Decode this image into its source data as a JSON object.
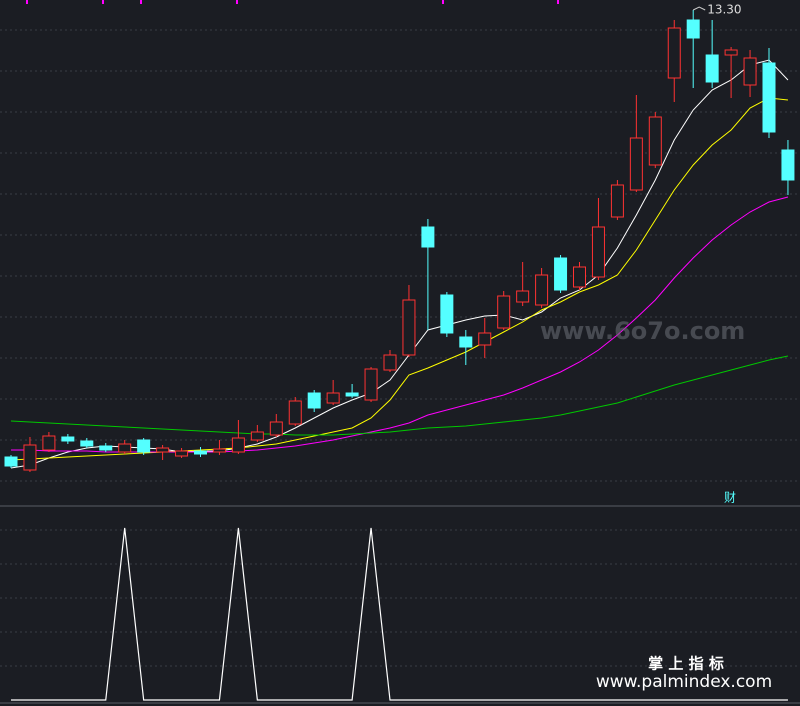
{
  "chart_data": [
    {
      "type": "candlestick",
      "ylim": [
        3.4,
        13.5
      ],
      "up_color": "#ff3232",
      "down_color": "#54ffff",
      "open": [
        4.36,
        4.1,
        4.5,
        4.76,
        4.68,
        4.58,
        4.46,
        4.7,
        4.46,
        4.38,
        4.48,
        4.46,
        4.46,
        4.7,
        4.8,
        5.02,
        5.64,
        5.44,
        5.64,
        5.5,
        6.1,
        6.4,
        8.96,
        7.6,
        6.76,
        6.6,
        6.94,
        7.46,
        7.4,
        8.34,
        7.76,
        7.96,
        9.16,
        9.7,
        10.2,
        11.94,
        13.1,
        12.4,
        12.4,
        11.8,
        12.24,
        10.5
      ],
      "high": [
        4.4,
        4.76,
        4.86,
        4.82,
        4.74,
        4.64,
        4.7,
        4.74,
        4.6,
        4.54,
        4.56,
        4.7,
        5.1,
        5.0,
        5.22,
        5.56,
        5.7,
        5.9,
        5.82,
        6.16,
        6.5,
        7.8,
        9.12,
        7.66,
        6.9,
        7.14,
        7.68,
        8.26,
        8.14,
        8.4,
        8.26,
        9.54,
        9.9,
        11.6,
        11.26,
        13.1,
        13.3,
        13.1,
        12.56,
        12.5,
        12.54,
        10.7
      ],
      "low": [
        4.14,
        4.06,
        4.46,
        4.62,
        4.54,
        4.46,
        4.42,
        4.4,
        4.3,
        4.34,
        4.36,
        4.4,
        4.42,
        4.66,
        4.76,
        4.98,
        5.26,
        5.4,
        5.54,
        5.46,
        6.06,
        6.36,
        6.9,
        6.76,
        6.2,
        6.34,
        6.9,
        7.38,
        7.34,
        7.64,
        7.7,
        7.9,
        9.1,
        9.66,
        10.14,
        11.46,
        11.74,
        11.74,
        11.54,
        11.56,
        10.74,
        9.6
      ],
      "close": [
        4.18,
        4.6,
        4.78,
        4.68,
        4.58,
        4.5,
        4.62,
        4.46,
        4.54,
        4.48,
        4.42,
        4.52,
        4.74,
        4.86,
        5.06,
        5.48,
        5.34,
        5.64,
        5.58,
        6.12,
        6.4,
        7.5,
        8.56,
        6.84,
        6.56,
        6.84,
        7.58,
        7.68,
        8.0,
        7.7,
        8.16,
        8.96,
        9.8,
        10.74,
        11.16,
        12.94,
        12.74,
        11.86,
        12.5,
        12.34,
        10.86,
        9.9
      ],
      "series": [
        {
          "color": "#ffffff",
          "values": [
            4.14,
            4.2,
            4.34,
            4.46,
            4.54,
            4.58,
            4.56,
            4.54,
            4.52,
            4.46,
            4.48,
            4.48,
            4.54,
            4.62,
            4.76,
            4.94,
            5.14,
            5.34,
            5.5,
            5.64,
            5.9,
            6.4,
            6.9,
            7.0,
            7.1,
            7.18,
            7.2,
            7.1,
            7.26,
            7.54,
            7.7,
            8.0,
            8.54,
            9.2,
            9.9,
            10.7,
            11.3,
            11.7,
            11.9,
            12.2,
            12.3,
            11.9
          ]
        },
        {
          "color": "#ffff00",
          "values": [
            4.3,
            4.32,
            4.34,
            4.36,
            4.38,
            4.4,
            4.42,
            4.44,
            4.46,
            4.48,
            4.5,
            4.52,
            4.54,
            4.58,
            4.62,
            4.7,
            4.78,
            4.86,
            4.94,
            5.14,
            5.5,
            6.0,
            6.14,
            6.3,
            6.46,
            6.66,
            6.86,
            7.06,
            7.3,
            7.46,
            7.66,
            7.8,
            8.0,
            8.5,
            9.1,
            9.7,
            10.2,
            10.6,
            10.9,
            11.34,
            11.54,
            11.5
          ]
        },
        {
          "color": "#ff00ff",
          "values": [
            4.5,
            4.5,
            4.48,
            4.48,
            4.48,
            4.46,
            4.46,
            4.46,
            4.46,
            4.46,
            4.46,
            4.46,
            4.48,
            4.5,
            4.54,
            4.58,
            4.64,
            4.7,
            4.78,
            4.86,
            4.94,
            5.04,
            5.2,
            5.3,
            5.4,
            5.5,
            5.6,
            5.74,
            5.9,
            6.06,
            6.26,
            6.5,
            6.8,
            7.14,
            7.5,
            7.94,
            8.34,
            8.7,
            9.0,
            9.26,
            9.46,
            9.56
          ]
        },
        {
          "color": "#00c800",
          "values": [
            5.08,
            5.06,
            5.04,
            5.02,
            5.0,
            4.98,
            4.96,
            4.94,
            4.92,
            4.9,
            4.88,
            4.86,
            4.84,
            4.82,
            4.82,
            4.8,
            4.8,
            4.8,
            4.82,
            4.84,
            4.86,
            4.9,
            4.94,
            4.96,
            4.98,
            5.02,
            5.06,
            5.1,
            5.14,
            5.2,
            5.28,
            5.36,
            5.44,
            5.56,
            5.68,
            5.8,
            5.9,
            6.0,
            6.1,
            6.2,
            6.3,
            6.38
          ]
        }
      ],
      "annotations": [
        {
          "text": "13.30",
          "value": 13.3
        }
      ],
      "marker_text": "财"
    },
    {
      "type": "line",
      "color": "#ffffff",
      "ylim": [
        0,
        1
      ],
      "values": [
        0,
        0,
        0,
        0,
        0,
        0,
        1,
        0,
        0,
        0,
        0,
        0,
        1,
        0,
        0,
        0,
        0,
        0,
        0,
        1,
        0,
        0,
        0,
        0,
        0,
        0,
        0,
        0,
        0,
        0,
        0,
        0,
        0,
        0,
        0,
        0,
        0,
        0,
        0,
        0,
        0,
        0
      ]
    }
  ],
  "watermarks": {
    "site": "www.6o7o.com",
    "brand": "掌 上 指 标",
    "url": "www.palmindex.com"
  }
}
